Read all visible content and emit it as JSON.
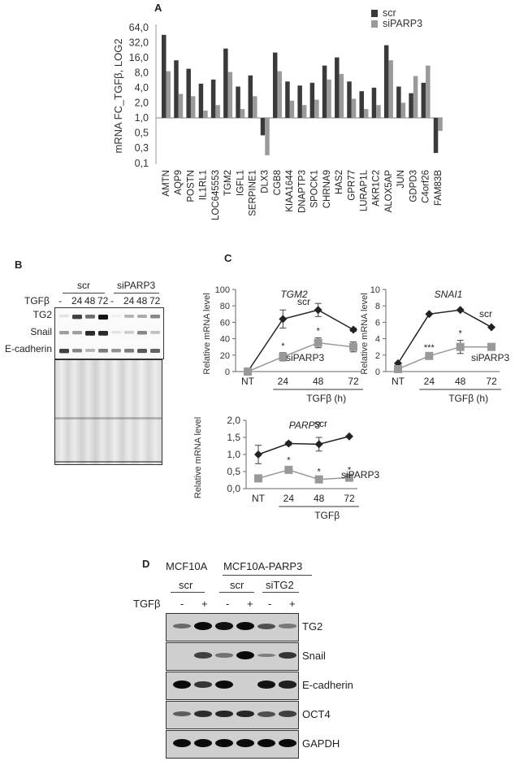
{
  "panels": {
    "A": {
      "letter": "A"
    },
    "B": {
      "letter": "B"
    },
    "C": {
      "letter": "C"
    },
    "D": {
      "letter": "D"
    }
  },
  "chart_data": [
    {
      "panel": "A",
      "type": "bar",
      "title": "",
      "ylabel": "mRNA FC_TGFβ, LOG2",
      "xlabel": "",
      "yscale": "log2",
      "ylim": [
        0.1,
        64.0
      ],
      "yticks": [
        "64,0",
        "32,0",
        "16,0",
        "8,0",
        "4,0",
        "2,0",
        "1,0",
        "0,5",
        "0,3",
        "0,1"
      ],
      "baseline": 1.0,
      "legend": {
        "position": "top-right",
        "entries": [
          "scr",
          "siPARP3"
        ]
      },
      "colors": {
        "scr": "#3a3a3a",
        "siPARP3": "#9a9a9a"
      },
      "categories": [
        "AMTN",
        "AQP9",
        "POSTN",
        "IL1RL1",
        "LOC645553",
        "TGM2",
        "IGFL1",
        "SERPINE1",
        "DLX3",
        "CGB8",
        "KIAA1644",
        "DNAPTP3",
        "SPOCK1",
        "CHRNA9",
        "HAS2",
        "GPR77",
        "LURAP1L",
        "AKR1C2",
        "ALOX5AP",
        "JUN",
        "GDPD3",
        "C4orf26",
        "FAM83B"
      ],
      "series": [
        {
          "name": "scr",
          "values": [
            45,
            14,
            9.5,
            4.8,
            5.8,
            24,
            4.2,
            7,
            0.45,
            20,
            5.3,
            4.4,
            5,
            11,
            16,
            5.3,
            3.4,
            4,
            28,
            4.2,
            3.1,
            5,
            0.2
          ]
        },
        {
          "name": "siPARP3",
          "values": [
            8.5,
            3,
            2.7,
            1.4,
            1.8,
            8.2,
            1.5,
            2.7,
            0.18,
            8.5,
            2.2,
            1.8,
            2.3,
            5.8,
            7.5,
            2.4,
            1.5,
            1.8,
            14,
            2,
            6.8,
            11,
            0.55
          ]
        }
      ]
    },
    {
      "panel": "C",
      "type": "line",
      "title": "TGM2",
      "ylabel": "Relative mRNA level",
      "xlabel": "TGFβ (h)",
      "categories": [
        "NT",
        "24",
        "48",
        "72"
      ],
      "ylim": [
        0,
        100
      ],
      "yticks": [
        "0",
        "20",
        "40",
        "60",
        "80",
        "100"
      ],
      "series": [
        {
          "name": "scr",
          "values": [
            0,
            64,
            75,
            51
          ],
          "errors": [
            2,
            11,
            8,
            2
          ],
          "marker": "diamond",
          "color": "#222222"
        },
        {
          "name": "siPARP3",
          "values": [
            0,
            18,
            35,
            30
          ],
          "errors": [
            2,
            5,
            6,
            6
          ],
          "marker": "square",
          "color": "#999999"
        }
      ],
      "significance": [
        {
          "x": "24",
          "mark": "*"
        },
        {
          "x": "48",
          "mark": "*"
        }
      ]
    },
    {
      "panel": "C",
      "type": "line",
      "title": "SNAI1",
      "ylabel": "Relative mRNA level",
      "xlabel": "TGFβ (h)",
      "categories": [
        "NT",
        "24",
        "48",
        "72"
      ],
      "ylim": [
        0,
        10
      ],
      "yticks": [
        "0",
        "2",
        "4",
        "6",
        "8",
        "10"
      ],
      "series": [
        {
          "name": "scr",
          "values": [
            1,
            7,
            7.5,
            5.4
          ],
          "errors": [
            0.1,
            0.1,
            0.1,
            0.1
          ],
          "marker": "diamond",
          "color": "#222222"
        },
        {
          "name": "siPARP3",
          "values": [
            0.3,
            1.9,
            3,
            3
          ],
          "errors": [
            0.2,
            0.2,
            0.8,
            0.1
          ],
          "marker": "square",
          "color": "#999999"
        }
      ],
      "significance": [
        {
          "x": "24",
          "mark": "***"
        },
        {
          "x": "48",
          "mark": "*"
        }
      ]
    },
    {
      "panel": "C",
      "type": "line",
      "title": "PARP3",
      "ylabel": "Relative mRNA level",
      "xlabel": "TGFβ",
      "categories": [
        "NT",
        "24",
        "48",
        "72"
      ],
      "ylim": [
        0.0,
        2.0
      ],
      "yticks": [
        "0,0",
        "0,5",
        "1,0",
        "1,5",
        "2,0"
      ],
      "series": [
        {
          "name": "scr",
          "values": [
            1.0,
            1.32,
            1.3,
            1.53
          ],
          "errors": [
            0.27,
            0.05,
            0.2,
            0.02
          ],
          "marker": "diamond",
          "color": "#222222"
        },
        {
          "name": "siPARP3",
          "values": [
            0.3,
            0.55,
            0.27,
            0.32
          ],
          "errors": [
            0.03,
            0.08,
            0.03,
            0.03
          ],
          "marker": "square",
          "color": "#999999"
        }
      ],
      "significance": [
        {
          "x": "24",
          "mark": "*"
        },
        {
          "x": "48",
          "mark": "*"
        },
        {
          "x": "72",
          "mark": "*"
        }
      ]
    }
  ],
  "blotB": {
    "groups": [
      "scr",
      "siPARP3"
    ],
    "treatment_label": "TGFβ",
    "lanes": [
      "-",
      "24",
      "48",
      "72",
      "-",
      "24",
      "48",
      "72"
    ],
    "rows": [
      "TG2",
      "Snail",
      "E-cadherin"
    ]
  },
  "blotD": {
    "cell_lines": [
      "MCF10A",
      "MCF10A-PARP3"
    ],
    "groups": [
      "scr",
      "scr",
      "siTG2"
    ],
    "treatment_label": "TGFβ",
    "lanes": [
      "-",
      "+",
      "-",
      "+",
      "-",
      "+"
    ],
    "rows": [
      "TG2",
      "Snail",
      "E-cadherin",
      "OCT4",
      "GAPDH"
    ]
  }
}
